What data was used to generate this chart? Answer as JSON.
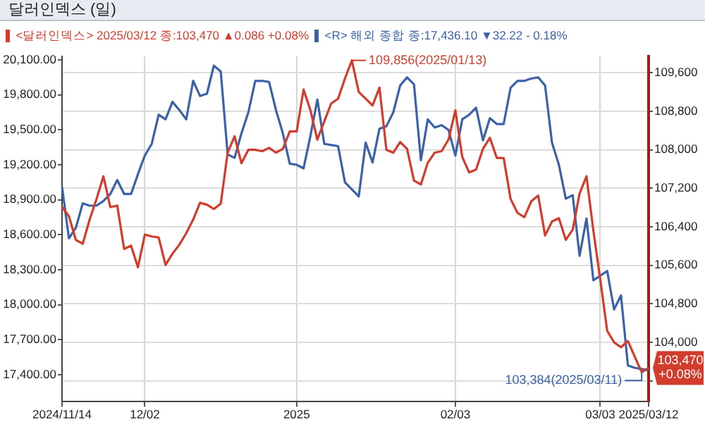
{
  "chart_data": {
    "type": "line",
    "title": "달러인덱스 (일)",
    "categories": [
      "2024/11/14",
      null,
      null,
      null,
      null,
      null,
      null,
      null,
      null,
      null,
      null,
      null,
      "12/02",
      null,
      null,
      null,
      null,
      null,
      null,
      null,
      null,
      null,
      null,
      null,
      null,
      null,
      null,
      null,
      null,
      null,
      null,
      null,
      null,
      null,
      "2025",
      null,
      null,
      null,
      null,
      null,
      null,
      null,
      null,
      null,
      null,
      null,
      null,
      null,
      null,
      null,
      null,
      null,
      null,
      null,
      null,
      null,
      null,
      "02/03",
      null,
      null,
      null,
      null,
      null,
      null,
      null,
      null,
      null,
      null,
      null,
      null,
      null,
      null,
      null,
      null,
      null,
      null,
      null,
      null,
      "03/03",
      null,
      null,
      null,
      null,
      null,
      null,
      "2025/03/12"
    ],
    "series": [
      {
        "name": "<달러인덱스> 2025/03/12 종:103,470 ▲0.086 +0.08%",
        "color": "#d23c2c",
        "axis": "y2",
        "values": [
          106810,
          106620,
          106130,
          106050,
          106550,
          106980,
          107450,
          106810,
          106840,
          105940,
          106010,
          105560,
          106240,
          106200,
          106180,
          105610,
          105840,
          106030,
          106270,
          106550,
          106900,
          106860,
          106770,
          106880,
          107940,
          108280,
          107720,
          108000,
          108000,
          107970,
          108040,
          107940,
          108020,
          108380,
          108380,
          109250,
          108820,
          108210,
          108590,
          108960,
          109060,
          109480,
          109856,
          109200,
          109060,
          108920,
          109290,
          108000,
          107940,
          108160,
          108020,
          107360,
          107280,
          107730,
          107940,
          107970,
          108210,
          108820,
          107850,
          107530,
          107590,
          108020,
          108250,
          107830,
          107830,
          106980,
          106690,
          106600,
          106930,
          107050,
          106220,
          106510,
          106580,
          106130,
          106340,
          107090,
          107450,
          106320,
          105300,
          104240,
          104000,
          103900,
          104030,
          103700,
          103384,
          103470
        ]
      },
      {
        "name": "<R> 해외 종합 종:17,436.10 ▼32.22 - 0.18%",
        "color": "#3b62a8",
        "axis": "y",
        "values": [
          19010,
          18570,
          18660,
          18870,
          18850,
          18850,
          18890,
          18950,
          19070,
          18950,
          18950,
          19120,
          19280,
          19380,
          19630,
          19590,
          19740,
          19670,
          19590,
          19920,
          19790,
          19810,
          20050,
          20000,
          19290,
          19260,
          19470,
          19650,
          19920,
          19920,
          19910,
          19670,
          19470,
          19210,
          19200,
          19170,
          19450,
          19760,
          19380,
          19370,
          19360,
          19050,
          18990,
          18930,
          19390,
          19220,
          19510,
          19530,
          19650,
          19880,
          19950,
          19890,
          19240,
          19590,
          19520,
          19540,
          19500,
          19280,
          19590,
          19630,
          19690,
          19410,
          19600,
          19550,
          19550,
          19860,
          19920,
          19920,
          19940,
          19950,
          19880,
          19390,
          19200,
          18910,
          18940,
          18420,
          18740,
          18210,
          18250,
          18290,
          17960,
          18080,
          17480,
          17460,
          17450,
          17436
        ]
      }
    ],
    "ylim": [
      17174,
      20130
    ],
    "yticks": [
      {
        "value": 17400,
        "label": "17,400.00"
      },
      {
        "value": 17700,
        "label": "17,700.00"
      },
      {
        "value": 18000,
        "label": "18,000.00"
      },
      {
        "value": 18300,
        "label": "18,300.00"
      },
      {
        "value": 18600,
        "label": "18,600.00"
      },
      {
        "value": 18900,
        "label": "18,900.00"
      },
      {
        "value": 19200,
        "label": "19,200.00"
      },
      {
        "value": 19500,
        "label": "19,500.00"
      },
      {
        "value": 19800,
        "label": "19,800.00"
      },
      {
        "value": 20100,
        "label": "20,100.00"
      }
    ],
    "y2lim": [
      102780,
      109940
    ],
    "y2ticks": [
      {
        "value": 103200,
        "label": null
      },
      {
        "value": 104000,
        "label": "104,000"
      },
      {
        "value": 104800,
        "label": "104,800"
      },
      {
        "value": 105600,
        "label": "105,600"
      },
      {
        "value": 106400,
        "label": "106,400"
      },
      {
        "value": 107200,
        "label": "107,200"
      },
      {
        "value": 108000,
        "label": "108,000"
      },
      {
        "value": 108800,
        "label": "108,800"
      },
      {
        "value": 109600,
        "label": "109,600"
      }
    ],
    "annotations": [
      "109,856(2025/01/13)",
      "103,384(2025/03/11)",
      "103,470 +0.08%"
    ],
    "grid": true,
    "legend": "top left",
    "marker": "none",
    "line_style": "solid"
  }
}
